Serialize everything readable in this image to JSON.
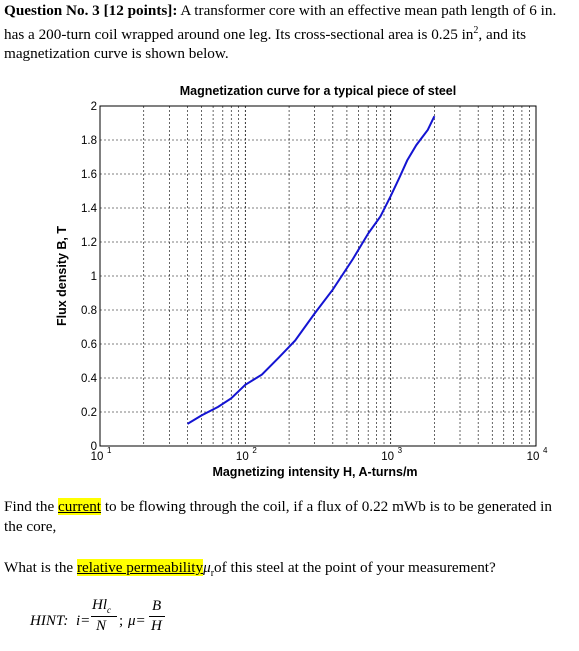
{
  "question": {
    "heading": "Question No. 3 [12 points]:",
    "text_1": " A transformer core with an effective mean path length of 6 in. has a 200-turn coil wrapped around one leg. Its cross-sectional area is 0.25 in",
    "sup_2": "2",
    "text_2": ", and its magnetization curve is shown below."
  },
  "chart_data": {
    "type": "line",
    "title": "Magnetization curve for a typical piece of steel",
    "xlabel": "Magnetizing intensity H, A-turns/m",
    "ylabel": "Flux density B, T",
    "xscale": "log",
    "xlim": [
      10,
      10000
    ],
    "ylim": [
      0,
      2
    ],
    "grid": true,
    "x_tick_base": "10",
    "x_tick_exps": [
      "1",
      "2",
      "3",
      "4"
    ],
    "y_ticks": [
      "0",
      "0.2",
      "0.4",
      "0.6",
      "0.8",
      "1",
      "1.2",
      "1.4",
      "1.6",
      "1.8",
      "2"
    ],
    "line_color": "#1414d2",
    "series": [
      {
        "x": [
          40,
          50,
          65,
          80,
          100,
          130,
          170,
          220,
          300,
          400,
          550,
          700,
          850,
          1000,
          1150,
          1300,
          1500,
          1800,
          2000
        ],
        "y": [
          0.13,
          0.18,
          0.23,
          0.28,
          0.36,
          0.42,
          0.52,
          0.62,
          0.78,
          0.92,
          1.1,
          1.25,
          1.35,
          1.47,
          1.58,
          1.68,
          1.77,
          1.86,
          1.94
        ]
      }
    ]
  },
  "q1": {
    "before": "Find the ",
    "highlight": "current",
    "after": " to be flowing through the coil, if a flux of 0.22 mWb is to be generated in the core,"
  },
  "q2": {
    "before": "What is the ",
    "highlight": "relative permeability",
    "sym": "μ",
    "sub": "r",
    "after": "of this steel at the point of your measurement?"
  },
  "hint": {
    "label": "HINT:",
    "i_eq": "i=",
    "num1": "Hl",
    "num1_sub": "c",
    "den1": "N",
    "sep": ";",
    "mu_eq": "μ=",
    "num2": "B",
    "den2": "H"
  }
}
